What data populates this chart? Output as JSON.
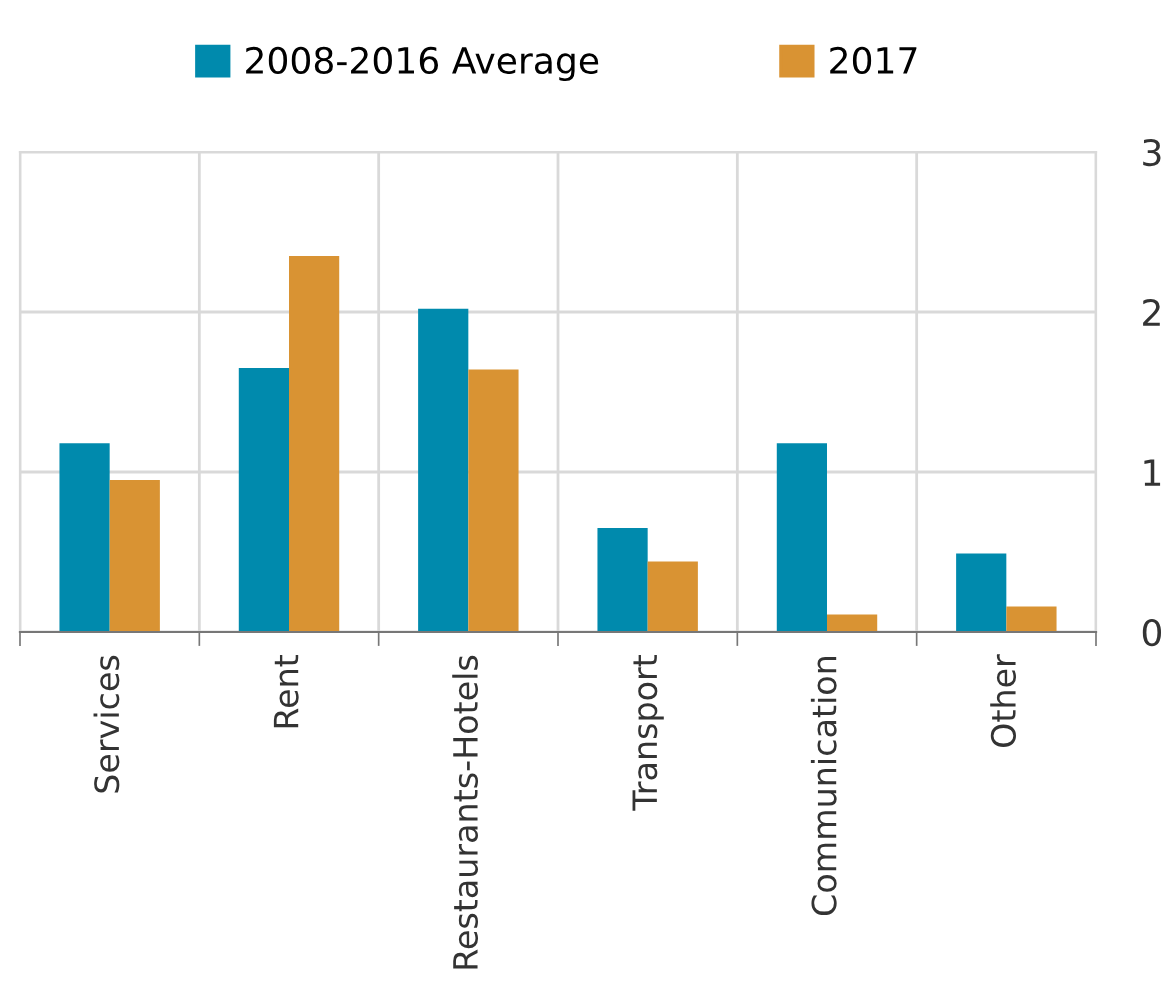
{
  "chart_data": {
    "type": "bar",
    "categories": [
      "Services",
      "Rent",
      "Restaurants-Hotels",
      "Transport",
      "Communication",
      "Other"
    ],
    "series": [
      {
        "name": "2008-2016 Average",
        "color": "#008aad",
        "values": [
          1.18,
          1.65,
          2.02,
          0.65,
          1.18,
          0.49
        ]
      },
      {
        "name": "2017",
        "color": "#d99333",
        "values": [
          0.95,
          2.35,
          1.64,
          0.44,
          0.11,
          0.16
        ]
      }
    ],
    "ylim": [
      0,
      3
    ],
    "yticks": [
      0,
      1,
      2,
      3
    ],
    "grid": true,
    "legend": "top"
  }
}
